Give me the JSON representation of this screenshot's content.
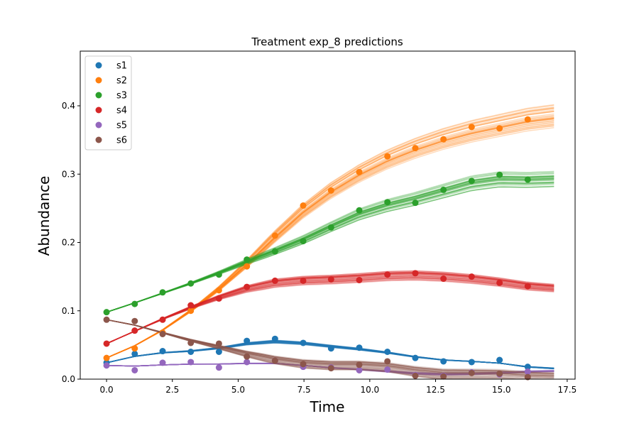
{
  "chart_data": {
    "type": "scatter",
    "title": "Treatment exp_8 predictions",
    "xlabel": "Time",
    "ylabel": "Abundance",
    "xlim": [
      -1.0,
      17.8
    ],
    "ylim": [
      0.0,
      0.48
    ],
    "xticks": [
      0.0,
      2.5,
      5.0,
      7.5,
      10.0,
      12.5,
      15.0,
      17.5
    ],
    "xtick_labels": [
      "0.0",
      "2.5",
      "5.0",
      "7.5",
      "10.0",
      "12.5",
      "15.0",
      "17.5"
    ],
    "yticks": [
      0.0,
      0.1,
      0.2,
      0.3,
      0.4
    ],
    "ytick_labels": [
      "0.0",
      "0.1",
      "0.2",
      "0.3",
      "0.4"
    ],
    "grid": false,
    "legend_position": "top-left",
    "prediction_curves_per_series": 30,
    "prediction_x_range": [
      0.0,
      17.0
    ],
    "series": [
      {
        "name": "s1",
        "color": "#1f77b4",
        "x": [
          0.0,
          1.07,
          2.13,
          3.2,
          4.27,
          5.33,
          6.4,
          7.47,
          8.53,
          9.6,
          10.67,
          11.73,
          12.8,
          13.87,
          14.93,
          16.0
        ],
        "y": [
          0.024,
          0.037,
          0.041,
          0.04,
          0.04,
          0.056,
          0.059,
          0.053,
          0.045,
          0.046,
          0.04,
          0.031,
          0.026,
          0.025,
          0.028,
          0.018
        ],
        "prediction_spread": 0.08
      },
      {
        "name": "s2",
        "color": "#ff7f0e",
        "x": [
          0.0,
          1.07,
          2.13,
          3.2,
          4.27,
          5.33,
          6.4,
          7.47,
          8.53,
          9.6,
          10.67,
          11.73,
          12.8,
          13.87,
          14.93,
          16.0
        ],
        "y": [
          0.031,
          0.045,
          0.068,
          0.1,
          0.13,
          0.165,
          0.21,
          0.254,
          0.276,
          0.303,
          0.326,
          0.338,
          0.351,
          0.369,
          0.367,
          0.38
        ],
        "prediction_spread": 0.05
      },
      {
        "name": "s3",
        "color": "#2ca02c",
        "x": [
          0.0,
          1.07,
          2.13,
          3.2,
          4.27,
          5.33,
          6.4,
          7.47,
          8.53,
          9.6,
          10.67,
          11.73,
          12.8,
          13.87,
          14.93,
          16.0
        ],
        "y": [
          0.098,
          0.11,
          0.127,
          0.14,
          0.153,
          0.175,
          0.187,
          0.202,
          0.222,
          0.247,
          0.259,
          0.258,
          0.277,
          0.29,
          0.299,
          0.292
        ],
        "prediction_spread": 0.06
      },
      {
        "name": "s4",
        "color": "#d62728",
        "x": [
          0.0,
          1.07,
          2.13,
          3.2,
          4.27,
          5.33,
          6.4,
          7.47,
          8.53,
          9.6,
          10.67,
          11.73,
          12.8,
          13.87,
          14.93,
          16.0
        ],
        "y": [
          0.052,
          0.071,
          0.087,
          0.108,
          0.118,
          0.135,
          0.144,
          0.144,
          0.146,
          0.145,
          0.153,
          0.155,
          0.147,
          0.15,
          0.141,
          0.136
        ],
        "prediction_spread": 0.07
      },
      {
        "name": "s5",
        "color": "#9467bd",
        "x": [
          0.0,
          1.07,
          2.13,
          3.2,
          4.27,
          5.33,
          6.4,
          7.47,
          8.53,
          9.6,
          10.67,
          11.73,
          12.8,
          13.87,
          14.93,
          16.0
        ],
        "y": [
          0.02,
          0.013,
          0.024,
          0.025,
          0.017,
          0.025,
          0.027,
          0.018,
          0.017,
          0.013,
          0.014,
          0.006,
          0.005,
          0.01,
          0.007,
          0.011
        ],
        "prediction_spread": 0.12
      },
      {
        "name": "s6",
        "color": "#8c564b",
        "x": [
          0.0,
          1.07,
          2.13,
          3.2,
          4.27,
          5.33,
          6.4,
          7.47,
          8.53,
          9.6,
          10.67,
          11.73,
          12.8,
          13.87,
          14.93,
          16.0
        ],
        "y": [
          0.087,
          0.085,
          0.066,
          0.053,
          0.052,
          0.033,
          0.027,
          0.022,
          0.016,
          0.021,
          0.026,
          0.005,
          0.004,
          0.009,
          0.008,
          0.003
        ],
        "prediction_spread": 0.1
      }
    ]
  }
}
